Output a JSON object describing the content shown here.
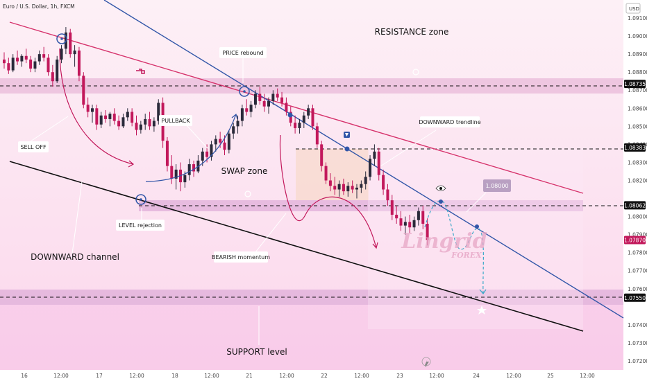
{
  "header": {
    "title": "Euro / U.S. Dollar, 1h, FXCM"
  },
  "currency_label": "USD",
  "colors": {
    "bull": "#2a2a3a",
    "bear": "#c2185b",
    "trendline_blue": "#3256a8",
    "trendline_red": "#d6336c",
    "channel": "#111111",
    "zone": "#e2a8d0"
  },
  "watermark": {
    "line1": "Lingrid",
    "line2": "FOREX"
  },
  "chart_data": {
    "type": "candlestick",
    "symbol": "EUR/USD",
    "timeframe": "1h",
    "ylim": [
      1.0715,
      1.092
    ],
    "y_ticks": [
      "1.09100",
      "1.09000",
      "1.08900",
      "1.08800",
      "1.08700",
      "1.08600",
      "1.08500",
      "1.08400",
      "1.08300",
      "1.08200",
      "1.08000",
      "1.07900",
      "1.07800",
      "1.07700",
      "1.07600",
      "1.07400",
      "1.07300",
      "1.07200"
    ],
    "x_ticks": [
      "16",
      "12:00",
      "17",
      "12:00",
      "18",
      "12:00",
      "21",
      "12:00",
      "22",
      "12:00",
      "23",
      "12:00",
      "24",
      "12:00",
      "25",
      "12:00"
    ],
    "price_levels": [
      {
        "label": "1.08735",
        "value": 1.08735,
        "style": "dashed"
      },
      {
        "label": "1.08383",
        "value": 1.08383,
        "style": "dashed"
      },
      {
        "label": "1.08062",
        "value": 1.08062,
        "style": "dashed"
      },
      {
        "label": "1.07870",
        "value": 1.0787,
        "style": "current"
      },
      {
        "label": "1.07550",
        "value": 1.0755,
        "style": "dashed"
      }
    ],
    "target_label": "1.08000",
    "annotations": {
      "resistance": "RESISTANCE zone",
      "swap": "SWAP zone",
      "support": "SUPPORT level",
      "channel": "DOWNWARD channel",
      "sell_off": "SELL OFF",
      "pullback": "PULLBACK",
      "price_rebound": "PRICE rebound",
      "level_rejection": "LEVEL rejection",
      "bearish_momentum": "BEARISH momentum",
      "downward_trendline": "DOWNWARD trendline"
    },
    "candles": [
      [
        1.0887,
        1.0891,
        1.0882,
        1.0885
      ],
      [
        1.0885,
        1.0888,
        1.0879,
        1.0881
      ],
      [
        1.0881,
        1.089,
        1.088,
        1.0888
      ],
      [
        1.0888,
        1.0892,
        1.0884,
        1.0886
      ],
      [
        1.0886,
        1.089,
        1.0883,
        1.0889
      ],
      [
        1.0889,
        1.0893,
        1.0885,
        1.0887
      ],
      [
        1.0887,
        1.0889,
        1.088,
        1.0882
      ],
      [
        1.0882,
        1.0888,
        1.088,
        1.0886
      ],
      [
        1.0886,
        1.0892,
        1.0884,
        1.089
      ],
      [
        1.089,
        1.0894,
        1.0886,
        1.0888
      ],
      [
        1.0888,
        1.089,
        1.0878,
        1.088
      ],
      [
        1.088,
        1.0884,
        1.0872,
        1.0875
      ],
      [
        1.0875,
        1.0889,
        1.0874,
        1.0887
      ],
      [
        1.0887,
        1.0895,
        1.0885,
        1.0893
      ],
      [
        1.0893,
        1.0905,
        1.089,
        1.0902
      ],
      [
        1.0902,
        1.0904,
        1.0888,
        1.089
      ],
      [
        1.089,
        1.0895,
        1.0883,
        1.0892
      ],
      [
        1.0892,
        1.0894,
        1.0875,
        1.0878
      ],
      [
        1.0878,
        1.088,
        1.086,
        1.0862
      ],
      [
        1.0862,
        1.0866,
        1.0855,
        1.0858
      ],
      [
        1.0858,
        1.0862,
        1.0852,
        1.086
      ],
      [
        1.086,
        1.0862,
        1.0848,
        1.0851
      ],
      [
        1.0851,
        1.0858,
        1.0849,
        1.0856
      ],
      [
        1.0856,
        1.0859,
        1.0852,
        1.0854
      ],
      [
        1.0854,
        1.0858,
        1.085,
        1.0857
      ],
      [
        1.0857,
        1.086,
        1.0851,
        1.0853
      ],
      [
        1.0853,
        1.0856,
        1.0848,
        1.085
      ],
      [
        1.085,
        1.0857,
        1.0849,
        1.0855
      ],
      [
        1.0855,
        1.086,
        1.0853,
        1.0858
      ],
      [
        1.0858,
        1.086,
        1.085,
        1.0852
      ],
      [
        1.0852,
        1.0856,
        1.0845,
        1.0848
      ],
      [
        1.0848,
        1.0853,
        1.0846,
        1.0851
      ],
      [
        1.0851,
        1.0857,
        1.0848,
        1.0854
      ],
      [
        1.0854,
        1.0858,
        1.0848,
        1.085
      ],
      [
        1.085,
        1.0855,
        1.0847,
        1.0853
      ],
      [
        1.0853,
        1.0865,
        1.0851,
        1.0863
      ],
      [
        1.0863,
        1.0866,
        1.0838,
        1.0842
      ],
      [
        1.0842,
        1.0844,
        1.0825,
        1.0828
      ],
      [
        1.0828,
        1.0834,
        1.0818,
        1.0821
      ],
      [
        1.0821,
        1.0829,
        1.0815,
        1.0826
      ],
      [
        1.0826,
        1.083,
        1.0814,
        1.0819
      ],
      [
        1.0819,
        1.0825,
        1.0816,
        1.0823
      ],
      [
        1.0823,
        1.0832,
        1.082,
        1.0829
      ],
      [
        1.0829,
        1.0831,
        1.0822,
        1.0825
      ],
      [
        1.0825,
        1.0834,
        1.0824,
        1.0831
      ],
      [
        1.0831,
        1.0838,
        1.0828,
        1.0836
      ],
      [
        1.0836,
        1.084,
        1.083,
        1.0833
      ],
      [
        1.0833,
        1.0842,
        1.0831,
        1.084
      ],
      [
        1.084,
        1.0845,
        1.0836,
        1.0843
      ],
      [
        1.0843,
        1.0847,
        1.0838,
        1.0841
      ],
      [
        1.0841,
        1.0845,
        1.0834,
        1.0837
      ],
      [
        1.0837,
        1.0848,
        1.0835,
        1.0846
      ],
      [
        1.0846,
        1.0852,
        1.0843,
        1.085
      ],
      [
        1.085,
        1.0856,
        1.0846,
        1.0853
      ],
      [
        1.0853,
        1.0862,
        1.085,
        1.086
      ],
      [
        1.086,
        1.0865,
        1.0856,
        1.0858
      ],
      [
        1.0858,
        1.0864,
        1.0855,
        1.0862
      ],
      [
        1.0862,
        1.087,
        1.086,
        1.0868
      ],
      [
        1.0868,
        1.0872,
        1.0862,
        1.0864
      ],
      [
        1.0864,
        1.0868,
        1.0858,
        1.0861
      ],
      [
        1.0861,
        1.0866,
        1.0857,
        1.0864
      ],
      [
        1.0864,
        1.087,
        1.0862,
        1.0868
      ],
      [
        1.0868,
        1.0871,
        1.0864,
        1.0866
      ],
      [
        1.0866,
        1.0869,
        1.0861,
        1.0863
      ],
      [
        1.0863,
        1.0866,
        1.0856,
        1.0858
      ],
      [
        1.0858,
        1.0861,
        1.085,
        1.0852
      ],
      [
        1.0852,
        1.0856,
        1.0846,
        1.0849
      ],
      [
        1.0849,
        1.0854,
        1.0846,
        1.0852
      ],
      [
        1.0852,
        1.0858,
        1.0849,
        1.0856
      ],
      [
        1.0856,
        1.0862,
        1.0854,
        1.086
      ],
      [
        1.086,
        1.0862,
        1.0848,
        1.085
      ],
      [
        1.085,
        1.0852,
        1.0838,
        1.084
      ],
      [
        1.084,
        1.0842,
        1.0825,
        1.0828
      ],
      [
        1.0828,
        1.083,
        1.0818,
        1.082
      ],
      [
        1.082,
        1.0824,
        1.0814,
        1.0817
      ],
      [
        1.0817,
        1.0822,
        1.0812,
        1.0815
      ],
      [
        1.0815,
        1.082,
        1.0811,
        1.0818
      ],
      [
        1.0818,
        1.0821,
        1.0812,
        1.0814
      ],
      [
        1.0814,
        1.0819,
        1.0811,
        1.0817
      ],
      [
        1.0817,
        1.082,
        1.0813,
        1.0815
      ],
      [
        1.0815,
        1.0818,
        1.081,
        1.0816
      ],
      [
        1.0816,
        1.082,
        1.0813,
        1.0818
      ],
      [
        1.0818,
        1.0825,
        1.0815,
        1.0822
      ],
      [
        1.0822,
        1.0834,
        1.082,
        1.0832
      ],
      [
        1.0832,
        1.084,
        1.0828,
        1.0836
      ],
      [
        1.0836,
        1.0838,
        1.082,
        1.0823
      ],
      [
        1.0823,
        1.0826,
        1.0812,
        1.0815
      ],
      [
        1.0815,
        1.0818,
        1.0806,
        1.0809
      ],
      [
        1.0809,
        1.0812,
        1.0798,
        1.0801
      ],
      [
        1.0801,
        1.0806,
        1.0796,
        1.0799
      ],
      [
        1.0799,
        1.0803,
        1.0792,
        1.0795
      ],
      [
        1.0795,
        1.08,
        1.079,
        1.0797
      ],
      [
        1.0797,
        1.0801,
        1.0791,
        1.0794
      ],
      [
        1.0794,
        1.08,
        1.0792,
        1.0798
      ],
      [
        1.0798,
        1.0805,
        1.0795,
        1.0803
      ],
      [
        1.0803,
        1.0806,
        1.0793,
        1.0796
      ],
      [
        1.0796,
        1.0799,
        1.0784,
        1.0787
      ]
    ]
  }
}
